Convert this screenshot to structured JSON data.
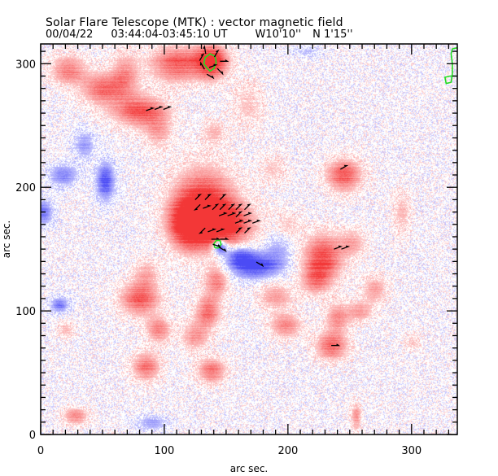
{
  "header": {
    "title": "Solar Flare Telescope (MTK) : vector magnetic field",
    "date": "00/04/22",
    "time_range": "03:44:04-03:45:10 UT",
    "lon": "W10'10''",
    "lat": "N 1'15''"
  },
  "chart_data": {
    "type": "heatmap",
    "title": "Solar Flare Telescope (MTK) : vector magnetic field",
    "xlabel": "arc sec.",
    "ylabel": "arc sec.",
    "xlim": [
      0,
      337
    ],
    "ylim": [
      0,
      316
    ],
    "x_ticks": [
      {
        "value": 0,
        "label": "0"
      },
      {
        "value": 100,
        "label": "100"
      },
      {
        "value": 200,
        "label": "200"
      },
      {
        "value": 300,
        "label": "300"
      }
    ],
    "y_ticks": [
      {
        "value": 0,
        "label": "0"
      },
      {
        "value": 100,
        "label": "100"
      },
      {
        "value": 200,
        "label": "200"
      },
      {
        "value": 300,
        "label": "300"
      }
    ],
    "minor_tick_step": 10,
    "colors": {
      "positive": "#ff4040",
      "negative": "#4848f0",
      "vector_arrow": "#000000",
      "contour": "#22dd22",
      "background": "#ffffff"
    },
    "polarity_regions": [
      {
        "polarity": "positive",
        "x": 132,
        "y": 185,
        "sx": 17,
        "sy": 20,
        "strength": 1.0
      },
      {
        "polarity": "positive",
        "x": 145,
        "y": 170,
        "sx": 18,
        "sy": 12,
        "strength": 0.85
      },
      {
        "polarity": "positive",
        "x": 118,
        "y": 170,
        "sx": 10,
        "sy": 14,
        "strength": 0.7
      },
      {
        "polarity": "positive",
        "x": 138,
        "y": 302,
        "sx": 9,
        "sy": 9,
        "strength": 1.0
      },
      {
        "polarity": "positive",
        "x": 110,
        "y": 300,
        "sx": 15,
        "sy": 10,
        "strength": 0.7
      },
      {
        "polarity": "positive",
        "x": 22,
        "y": 295,
        "sx": 10,
        "sy": 8,
        "strength": 0.55
      },
      {
        "polarity": "positive",
        "x": 50,
        "y": 280,
        "sx": 12,
        "sy": 9,
        "strength": 0.6
      },
      {
        "polarity": "positive",
        "x": 68,
        "y": 292,
        "sx": 8,
        "sy": 12,
        "strength": 0.45
      },
      {
        "polarity": "positive",
        "x": 80,
        "y": 262,
        "sx": 15,
        "sy": 9,
        "strength": 0.7
      },
      {
        "polarity": "positive",
        "x": 95,
        "y": 245,
        "sx": 8,
        "sy": 10,
        "strength": 0.35
      },
      {
        "polarity": "positive",
        "x": 140,
        "y": 245,
        "sx": 7,
        "sy": 7,
        "strength": 0.3
      },
      {
        "polarity": "positive",
        "x": 168,
        "y": 268,
        "sx": 9,
        "sy": 14,
        "strength": 0.25
      },
      {
        "polarity": "positive",
        "x": 245,
        "y": 210,
        "sx": 10,
        "sy": 9,
        "strength": 0.75
      },
      {
        "polarity": "positive",
        "x": 228,
        "y": 143,
        "sx": 11,
        "sy": 13,
        "strength": 0.8
      },
      {
        "polarity": "positive",
        "x": 222,
        "y": 125,
        "sx": 8,
        "sy": 8,
        "strength": 0.45
      },
      {
        "polarity": "positive",
        "x": 252,
        "y": 155,
        "sx": 8,
        "sy": 8,
        "strength": 0.35
      },
      {
        "polarity": "positive",
        "x": 292,
        "y": 180,
        "sx": 5,
        "sy": 12,
        "strength": 0.3
      },
      {
        "polarity": "positive",
        "x": 188,
        "y": 215,
        "sx": 8,
        "sy": 8,
        "strength": 0.25
      },
      {
        "polarity": "positive",
        "x": 200,
        "y": 170,
        "sx": 7,
        "sy": 8,
        "strength": 0.25
      },
      {
        "polarity": "positive",
        "x": 142,
        "y": 125,
        "sx": 7,
        "sy": 9,
        "strength": 0.55
      },
      {
        "polarity": "positive",
        "x": 85,
        "y": 130,
        "sx": 8,
        "sy": 8,
        "strength": 0.35
      },
      {
        "polarity": "positive",
        "x": 80,
        "y": 110,
        "sx": 11,
        "sy": 9,
        "strength": 0.7
      },
      {
        "polarity": "positive",
        "x": 95,
        "y": 85,
        "sx": 7,
        "sy": 7,
        "strength": 0.55
      },
      {
        "polarity": "positive",
        "x": 135,
        "y": 100,
        "sx": 7,
        "sy": 9,
        "strength": 0.6
      },
      {
        "polarity": "positive",
        "x": 125,
        "y": 80,
        "sx": 8,
        "sy": 8,
        "strength": 0.45
      },
      {
        "polarity": "positive",
        "x": 190,
        "y": 112,
        "sx": 10,
        "sy": 8,
        "strength": 0.4
      },
      {
        "polarity": "positive",
        "x": 198,
        "y": 88,
        "sx": 9,
        "sy": 7,
        "strength": 0.5
      },
      {
        "polarity": "positive",
        "x": 240,
        "y": 95,
        "sx": 7,
        "sy": 9,
        "strength": 0.45
      },
      {
        "polarity": "positive",
        "x": 235,
        "y": 72,
        "sx": 9,
        "sy": 8,
        "strength": 0.65
      },
      {
        "polarity": "positive",
        "x": 270,
        "y": 118,
        "sx": 7,
        "sy": 8,
        "strength": 0.4
      },
      {
        "polarity": "positive",
        "x": 258,
        "y": 100,
        "sx": 7,
        "sy": 6,
        "strength": 0.4
      },
      {
        "polarity": "positive",
        "x": 85,
        "y": 55,
        "sx": 8,
        "sy": 8,
        "strength": 0.6
      },
      {
        "polarity": "positive",
        "x": 138,
        "y": 52,
        "sx": 8,
        "sy": 7,
        "strength": 0.6
      },
      {
        "polarity": "positive",
        "x": 28,
        "y": 15,
        "sx": 7,
        "sy": 5,
        "strength": 0.5
      },
      {
        "polarity": "positive",
        "x": 255,
        "y": 15,
        "sx": 3,
        "sy": 8,
        "strength": 0.45
      },
      {
        "polarity": "positive",
        "x": 20,
        "y": 85,
        "sx": 5,
        "sy": 5,
        "strength": 0.3
      },
      {
        "polarity": "positive",
        "x": 300,
        "y": 75,
        "sx": 5,
        "sy": 5,
        "strength": 0.25
      },
      {
        "polarity": "negative",
        "x": 172,
        "y": 137,
        "sx": 14,
        "sy": 7,
        "strength": 0.95
      },
      {
        "polarity": "negative",
        "x": 145,
        "y": 152,
        "sx": 4,
        "sy": 4,
        "strength": 1.0
      },
      {
        "polarity": "negative",
        "x": 160,
        "y": 145,
        "sx": 8,
        "sy": 5,
        "strength": 0.6
      },
      {
        "polarity": "negative",
        "x": 192,
        "y": 150,
        "sx": 8,
        "sy": 10,
        "strength": 0.3
      },
      {
        "polarity": "negative",
        "x": 52,
        "y": 205,
        "sx": 5,
        "sy": 10,
        "strength": 0.85
      },
      {
        "polarity": "negative",
        "x": 18,
        "y": 210,
        "sx": 8,
        "sy": 6,
        "strength": 0.55
      },
      {
        "polarity": "negative",
        "x": 35,
        "y": 235,
        "sx": 6,
        "sy": 8,
        "strength": 0.4
      },
      {
        "polarity": "negative",
        "x": 2,
        "y": 180,
        "sx": 5,
        "sy": 7,
        "strength": 0.6
      },
      {
        "polarity": "negative",
        "x": 15,
        "y": 105,
        "sx": 5,
        "sy": 4,
        "strength": 0.6
      },
      {
        "polarity": "negative",
        "x": 90,
        "y": 10,
        "sx": 8,
        "sy": 4,
        "strength": 0.4
      },
      {
        "polarity": "negative",
        "x": 215,
        "y": 310,
        "sx": 8,
        "sy": 3,
        "strength": 0.25
      }
    ],
    "vector_arrows": [
      {
        "x": 133,
        "y": 311,
        "angle": 100
      },
      {
        "x": 130,
        "y": 305,
        "angle": 60
      },
      {
        "x": 142,
        "y": 308,
        "angle": 60
      },
      {
        "x": 148,
        "y": 302,
        "angle": 0
      },
      {
        "x": 139,
        "y": 298,
        "angle": 20
      },
      {
        "x": 145,
        "y": 294,
        "angle": -45
      },
      {
        "x": 131,
        "y": 298,
        "angle": 120
      },
      {
        "x": 137,
        "y": 290,
        "angle": -30
      },
      {
        "x": 88,
        "y": 263,
        "angle": 20
      },
      {
        "x": 95,
        "y": 264,
        "angle": 20
      },
      {
        "x": 102,
        "y": 264,
        "angle": 20
      },
      {
        "x": 127,
        "y": 192,
        "angle": 45
      },
      {
        "x": 135,
        "y": 192,
        "angle": 45
      },
      {
        "x": 147,
        "y": 192,
        "angle": 45
      },
      {
        "x": 127,
        "y": 184,
        "angle": 225
      },
      {
        "x": 134,
        "y": 184,
        "angle": 20
      },
      {
        "x": 141,
        "y": 184,
        "angle": 45
      },
      {
        "x": 147,
        "y": 184,
        "angle": 45
      },
      {
        "x": 154,
        "y": 184,
        "angle": 45
      },
      {
        "x": 160,
        "y": 184,
        "angle": 45
      },
      {
        "x": 167,
        "y": 184,
        "angle": 45
      },
      {
        "x": 147,
        "y": 178,
        "angle": 20
      },
      {
        "x": 154,
        "y": 178,
        "angle": 20
      },
      {
        "x": 160,
        "y": 178,
        "angle": 45
      },
      {
        "x": 167,
        "y": 178,
        "angle": 20
      },
      {
        "x": 160,
        "y": 172,
        "angle": 20
      },
      {
        "x": 167,
        "y": 172,
        "angle": 20
      },
      {
        "x": 174,
        "y": 172,
        "angle": 20
      },
      {
        "x": 131,
        "y": 165,
        "angle": 225
      },
      {
        "x": 138,
        "y": 165,
        "angle": 20
      },
      {
        "x": 145,
        "y": 165,
        "angle": 20
      },
      {
        "x": 160,
        "y": 165,
        "angle": 45
      },
      {
        "x": 167,
        "y": 165,
        "angle": 45
      },
      {
        "x": 141,
        "y": 158,
        "angle": 0
      },
      {
        "x": 148,
        "y": 158,
        "angle": 0
      },
      {
        "x": 142,
        "y": 153,
        "angle": -20
      },
      {
        "x": 147,
        "y": 150,
        "angle": -30
      },
      {
        "x": 177,
        "y": 138,
        "angle": -30
      },
      {
        "x": 245,
        "y": 216,
        "angle": 30
      },
      {
        "x": 240,
        "y": 151,
        "angle": 20
      },
      {
        "x": 246,
        "y": 151,
        "angle": 20
      },
      {
        "x": 238,
        "y": 72,
        "angle": 0
      }
    ],
    "contours": [
      {
        "name": "sunspot-umbra-contour",
        "points": [
          [
            135,
            296
          ],
          [
            132,
            300
          ],
          [
            133,
            305
          ],
          [
            137,
            308
          ],
          [
            141,
            306
          ],
          [
            142,
            301
          ],
          [
            140,
            296
          ],
          [
            137,
            294
          ],
          [
            135,
            296
          ]
        ]
      },
      {
        "name": "small-umbra-contour",
        "points": [
          [
            141,
            151
          ],
          [
            140,
            154
          ],
          [
            142,
            157
          ],
          [
            145,
            157
          ],
          [
            146,
            154
          ],
          [
            144,
            151
          ],
          [
            141,
            151
          ]
        ]
      },
      {
        "name": "limb-edge-contour",
        "points": [
          [
            337,
            313
          ],
          [
            333,
            312
          ],
          [
            332,
            308
          ],
          [
            333,
            300
          ],
          [
            333,
            292
          ],
          [
            332,
            285
          ],
          [
            328,
            284
          ],
          [
            327,
            289
          ],
          [
            331,
            290
          ],
          [
            336,
            290
          ]
        ]
      }
    ]
  }
}
